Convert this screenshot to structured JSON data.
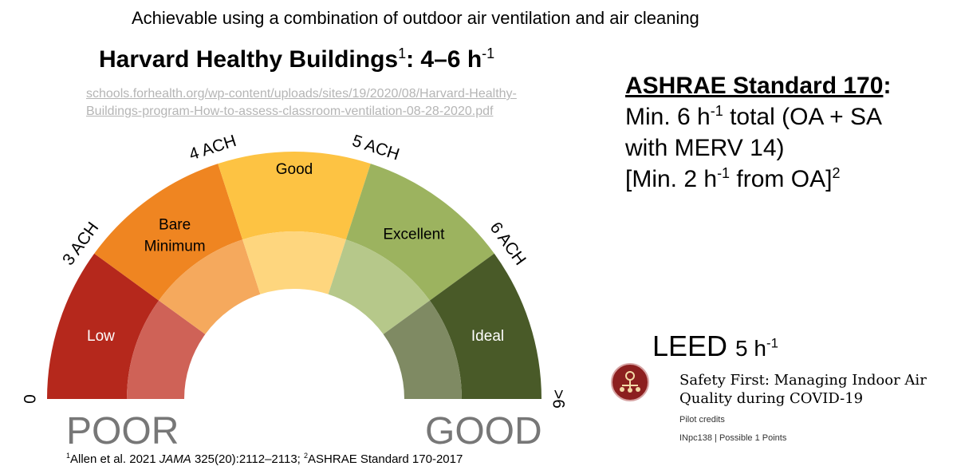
{
  "header": {
    "caption": "Achievable using a combination of outdoor air ventilation and air cleaning",
    "harvard_title": "Harvard Healthy Buildings",
    "harvard_sup": "1",
    "harvard_rate": ": 4–6 h",
    "harvard_rate_sup": "-1",
    "url": "schools.forhealth.org/wp-content/uploads/sites/19/2020/08/Harvard-Healthy-Buildings-program-How-to-assess-classroom-ventilation-08-28-2020.pdf"
  },
  "ashrae": {
    "title": "ASHRAE Standard 170",
    "colon": ":",
    "line1_a": "Min. 6 h",
    "line1_sup": "-1",
    "line1_b": " total (OA + SA",
    "line2": "with MERV 14)",
    "line3_a": "[Min. 2 h",
    "line3_sup": "-1",
    "line3_b": " from OA]",
    "line3_sup2": "2"
  },
  "leed": {
    "title": "LEED",
    "rate": "5 h",
    "rate_sup": "-1",
    "credit_title": "Safety First: Managing Indoor Air Quality during COVID-19",
    "category": "Pilot credits",
    "credit_info": "INpc138 | Possible 1 Points",
    "icon": "network-people-icon",
    "badge_color": "#8c1f1f"
  },
  "gauge": {
    "tick_labels": [
      "0",
      "3 ACH",
      "4 ACH",
      "5 ACH",
      "6 ACH",
      ">6"
    ],
    "segments": [
      {
        "label": "Low",
        "outer": "#b5281c",
        "inner": "#cf6257",
        "text_color": "#ffffff"
      },
      {
        "label": "Bare Minimum",
        "outer": "#ef8521",
        "inner": "#f5a95d",
        "text_color": "#000000"
      },
      {
        "label": "Good",
        "outer": "#fdc343",
        "inner": "#fed67e",
        "text_color": "#000000"
      },
      {
        "label": "Excellent",
        "outer": "#9cb35f",
        "inner": "#b6c88a",
        "text_color": "#000000"
      },
      {
        "label": "Ideal",
        "outer": "#495a28",
        "inner": "#7f8a63",
        "text_color": "#ffffff"
      }
    ],
    "poor_label": "POOR",
    "good_label": "GOOD"
  },
  "footnote": {
    "sup1": "1",
    "part1": "Allen et al. 2021 ",
    "journal": "JAMA",
    "part2": " 325(20):2112–2113; ",
    "sup2": "2",
    "part3": "ASHRAE Standard 170-2017"
  }
}
